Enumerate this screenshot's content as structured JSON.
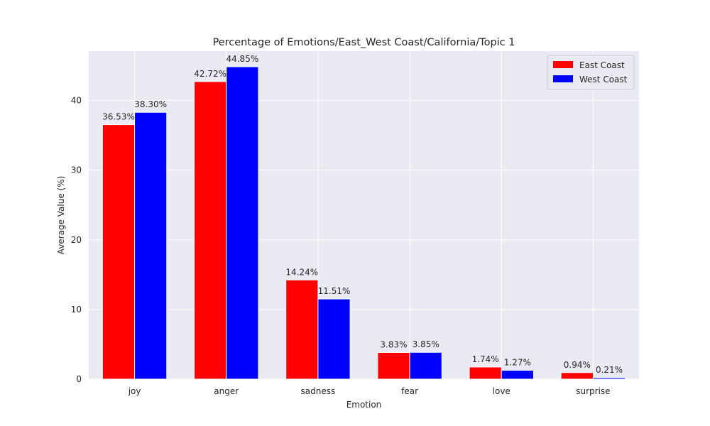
{
  "chart_data": {
    "type": "bar",
    "title": "Percentage of Emotions/East_West Coast/California/Topic 1",
    "xlabel": "Emotion",
    "ylabel": "Average Value (%)",
    "categories": [
      "joy",
      "anger",
      "sadness",
      "fear",
      "love",
      "surprise"
    ],
    "series": [
      {
        "name": "East Coast",
        "color": "#ff0000",
        "values": [
          36.53,
          42.72,
          14.24,
          3.83,
          1.74,
          0.94
        ],
        "labels": [
          "36.53%",
          "42.72%",
          "14.24%",
          "3.83%",
          "1.74%",
          "0.94%"
        ]
      },
      {
        "name": "West Coast",
        "color": "#0000ff",
        "values": [
          38.3,
          44.85,
          11.51,
          3.85,
          1.27,
          0.21
        ],
        "labels": [
          "38.30%",
          "44.85%",
          "11.51%",
          "3.85%",
          "1.27%",
          "0.21%"
        ]
      }
    ],
    "yticks": [
      0,
      10,
      20,
      30,
      40
    ],
    "ylim": [
      0,
      47.09
    ],
    "grid": true,
    "legend_position": "top-right",
    "background_color": "#eaeaf2",
    "grid_color": "#ffffff"
  }
}
